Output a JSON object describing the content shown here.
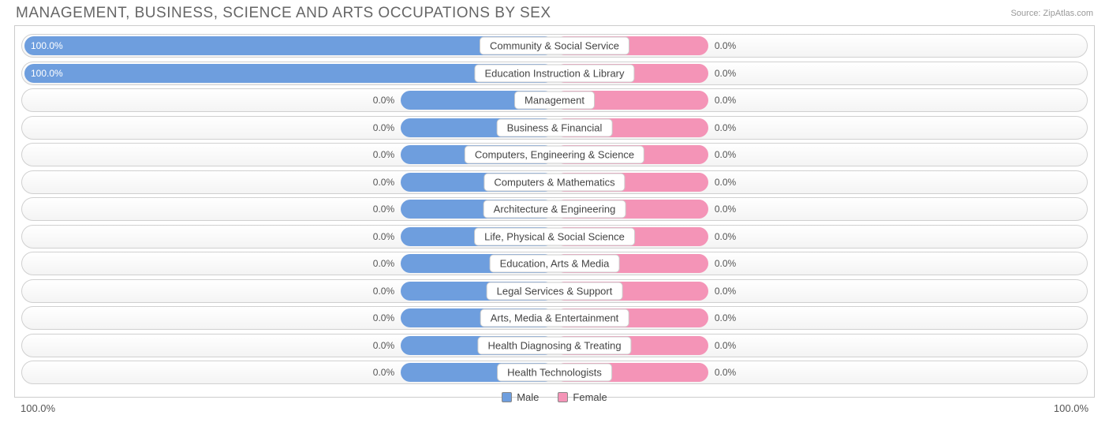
{
  "header": {
    "title": "MANAGEMENT, BUSINESS, SCIENCE AND ARTS OCCUPATIONS BY SEX",
    "source": "Source: ZipAtlas.com"
  },
  "chart": {
    "type": "diverging-bar",
    "male_color": "#6e9ede",
    "female_color": "#f494b7",
    "track_border": "#d0d0d0",
    "track_bg_top": "#ffffff",
    "track_bg_bottom": "#f4f4f4",
    "label_box_bg": "#ffffff",
    "label_box_border": "#cccccc",
    "value_text_color": "#555555",
    "bar_text_color": "#ffffff",
    "min_bar_pct": 29,
    "rows": [
      {
        "label": "Community & Social Service",
        "male_pct": 100.0,
        "female_pct": 0.0,
        "male_text": "100.0%",
        "female_text": "0.0%"
      },
      {
        "label": "Education Instruction & Library",
        "male_pct": 100.0,
        "female_pct": 0.0,
        "male_text": "100.0%",
        "female_text": "0.0%"
      },
      {
        "label": "Management",
        "male_pct": 0.0,
        "female_pct": 0.0,
        "male_text": "0.0%",
        "female_text": "0.0%"
      },
      {
        "label": "Business & Financial",
        "male_pct": 0.0,
        "female_pct": 0.0,
        "male_text": "0.0%",
        "female_text": "0.0%"
      },
      {
        "label": "Computers, Engineering & Science",
        "male_pct": 0.0,
        "female_pct": 0.0,
        "male_text": "0.0%",
        "female_text": "0.0%"
      },
      {
        "label": "Computers & Mathematics",
        "male_pct": 0.0,
        "female_pct": 0.0,
        "male_text": "0.0%",
        "female_text": "0.0%"
      },
      {
        "label": "Architecture & Engineering",
        "male_pct": 0.0,
        "female_pct": 0.0,
        "male_text": "0.0%",
        "female_text": "0.0%"
      },
      {
        "label": "Life, Physical & Social Science",
        "male_pct": 0.0,
        "female_pct": 0.0,
        "male_text": "0.0%",
        "female_text": "0.0%"
      },
      {
        "label": "Education, Arts & Media",
        "male_pct": 0.0,
        "female_pct": 0.0,
        "male_text": "0.0%",
        "female_text": "0.0%"
      },
      {
        "label": "Legal Services & Support",
        "male_pct": 0.0,
        "female_pct": 0.0,
        "male_text": "0.0%",
        "female_text": "0.0%"
      },
      {
        "label": "Arts, Media & Entertainment",
        "male_pct": 0.0,
        "female_pct": 0.0,
        "male_text": "0.0%",
        "female_text": "0.0%"
      },
      {
        "label": "Health Diagnosing & Treating",
        "male_pct": 0.0,
        "female_pct": 0.0,
        "male_text": "0.0%",
        "female_text": "0.0%"
      },
      {
        "label": "Health Technologists",
        "male_pct": 0.0,
        "female_pct": 0.0,
        "male_text": "0.0%",
        "female_text": "0.0%"
      }
    ],
    "legend": {
      "male": "Male",
      "female": "Female"
    },
    "axis": {
      "left": "100.0%",
      "right": "100.0%"
    }
  }
}
